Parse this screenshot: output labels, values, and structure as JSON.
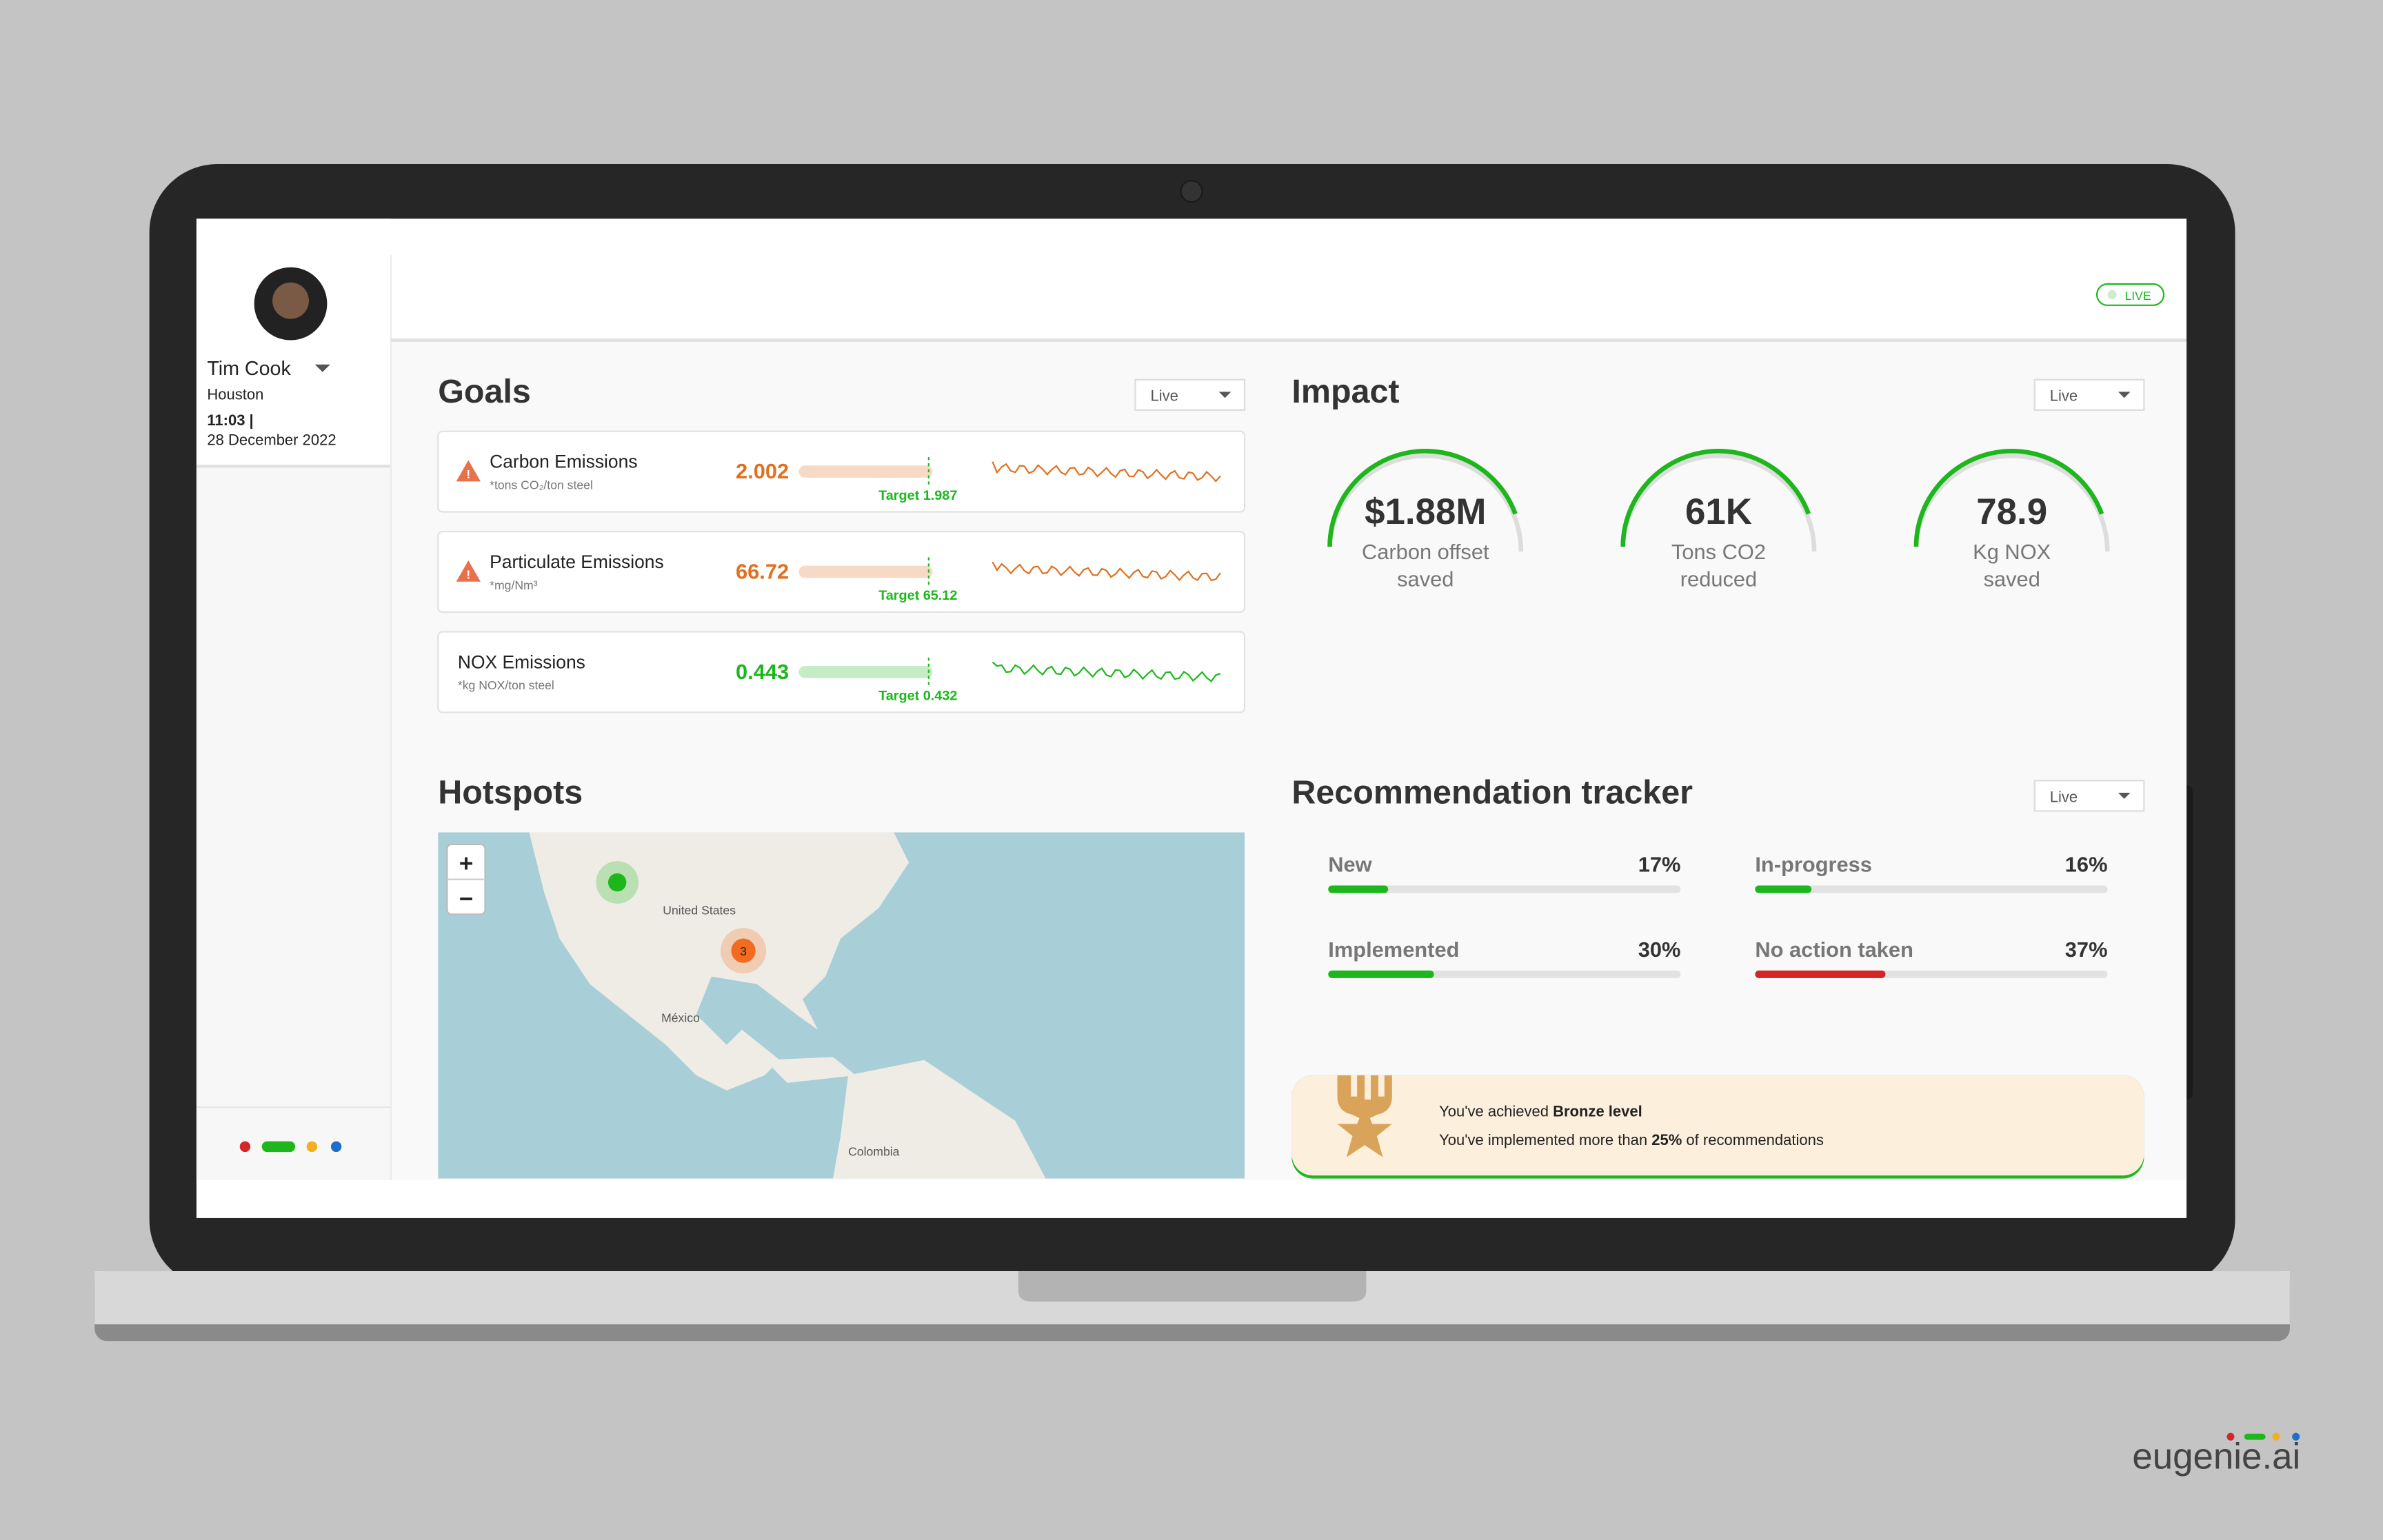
{
  "user": {
    "name": "Tim Cook",
    "location": "Houston",
    "time": "11:03 |",
    "date": "28 December 2022"
  },
  "header": {
    "status": "LIVE"
  },
  "goals": {
    "title": "Goals",
    "filter": "Live",
    "target_label": "Target",
    "items": [
      {
        "name": "Carbon Emissions",
        "unit": "*tons CO₂/ton steel",
        "value": "2.002",
        "target": "1.987",
        "status": "warning"
      },
      {
        "name": "Particulate Emissions",
        "unit": "*mg/Nm³",
        "value": "66.72",
        "target": "65.12",
        "status": "warning"
      },
      {
        "name": "NOX Emissions",
        "unit": "*kg NOX/ton steel",
        "value": "0.443",
        "target": "0.432",
        "status": "ok"
      }
    ]
  },
  "impact": {
    "title": "Impact",
    "filter": "Live",
    "items": [
      {
        "value": "$1.88M",
        "label": [
          "Carbon offset",
          "saved"
        ]
      },
      {
        "value": "61K",
        "label": [
          "Tons CO2",
          "reduced"
        ]
      },
      {
        "value": "78.9",
        "label": [
          "Kg NOX",
          "saved"
        ]
      }
    ]
  },
  "hotspots": {
    "title": "Hotspots",
    "zoom_in": "+",
    "zoom_out": "−",
    "cluster": "3",
    "places": [
      "United States",
      "México",
      "Colombia"
    ]
  },
  "recommendations": {
    "title": "Recommendation tracker",
    "filter": "Live",
    "items": [
      {
        "name": "New",
        "percent": {
          "value": 17,
          "label": "17%"
        },
        "color": "#1db71d"
      },
      {
        "name": "In-progress",
        "percent": {
          "value": 16,
          "label": "16%"
        },
        "color": "#1db71d"
      },
      {
        "name": "Implemented",
        "percent": {
          "value": 30,
          "label": "30%"
        },
        "color": "#1db71d"
      },
      {
        "name": "No action taken",
        "percent": {
          "value": 37,
          "label": "37%"
        },
        "color": "#d32626"
      }
    ]
  },
  "badge": {
    "line1": "You've achieved ",
    "level": "Bronze level",
    "line2": "You've implemented more than ",
    "threshold": "25%",
    "line2_end": " of recommendations"
  },
  "brand": "eugenie.ai"
}
